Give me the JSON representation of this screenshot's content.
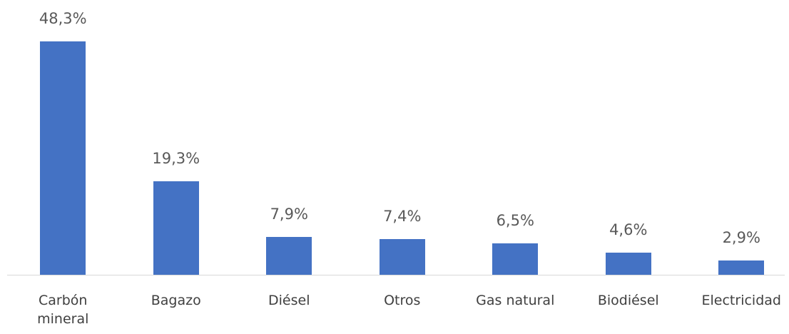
{
  "chart_data": {
    "type": "bar",
    "categories": [
      "Carbón mineral",
      "Bagazo",
      "Diésel",
      "Otros",
      "Gas natural",
      "Biodiésel",
      "Electricidad"
    ],
    "values": [
      48.3,
      19.3,
      7.9,
      7.4,
      6.5,
      4.6,
      2.9
    ],
    "value_labels": [
      "48,3%",
      "19,3%",
      "7,9%",
      "7,4%",
      "6,5%",
      "4,6%",
      "2,9%"
    ],
    "color": "#4472c4"
  }
}
